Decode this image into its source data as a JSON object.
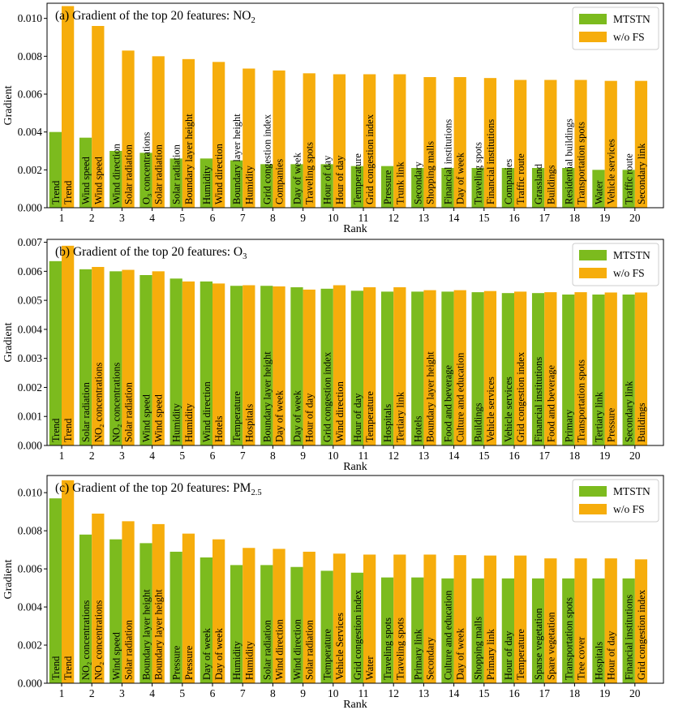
{
  "colors": {
    "mtstn": "#7cbb1e",
    "wofs": "#f6ad0c",
    "frame": "#000000",
    "background": "#ffffff"
  },
  "legend_labels": {
    "mtstn": "MTSTN",
    "wofs": "w/o FS"
  },
  "chart_data": [
    {
      "type": "bar",
      "title": "(a) Gradient of the top 20 features: NO₂",
      "title_main": "(a) Gradient of the top 20 features: NO",
      "title_sub": "2",
      "xlabel": "Rank",
      "ylabel": "Gradient",
      "legend_position": "top-right",
      "ylim": [
        0,
        0.0108
      ],
      "yticks": [
        0.0,
        0.002,
        0.004,
        0.006,
        0.008,
        0.01
      ],
      "ytick_labels": [
        "0.000",
        "0.002",
        "0.004",
        "0.006",
        "0.008",
        "0.010"
      ],
      "categories": [
        "1",
        "2",
        "3",
        "4",
        "5",
        "6",
        "7",
        "8",
        "9",
        "10",
        "11",
        "12",
        "13",
        "14",
        "15",
        "16",
        "17",
        "18",
        "19",
        "20"
      ],
      "series": [
        {
          "name": "MTSTN",
          "values": [
            0.004,
            0.0037,
            0.003,
            0.0029,
            0.0026,
            0.0026,
            0.0025,
            0.0023,
            0.0023,
            0.0023,
            0.0022,
            0.0022,
            0.0021,
            0.0021,
            0.0021,
            0.0021,
            0.0021,
            0.0021,
            0.002,
            0.002
          ],
          "feature_labels": [
            "Trend",
            "Wind speed",
            "Wind direction",
            "O₃ concentrations",
            "Solar radiation",
            "Humidity",
            "Boundary layer height",
            "Grid congestion index",
            "Day of week",
            "Hour of day",
            "Temperature",
            "Pressure",
            "Secondary",
            "Financial institutions",
            "Traveling spots",
            "Companies",
            "Grassland",
            "Residential buildings",
            "Water",
            "Traffic route"
          ]
        },
        {
          "name": "w/o FS",
          "values": [
            0.01065,
            0.0096,
            0.0083,
            0.008,
            0.00785,
            0.0077,
            0.00735,
            0.00725,
            0.0071,
            0.00705,
            0.00705,
            0.00705,
            0.0069,
            0.0069,
            0.00685,
            0.00675,
            0.00675,
            0.00675,
            0.0067,
            0.0067
          ],
          "feature_labels": [
            "Trend",
            "Wind speed",
            "Solar radiation",
            "Solar radiation",
            "Boundary layer height",
            "Wind direction",
            "Humidity",
            "Companies",
            "Traveling spots",
            "Hour of day",
            "Grid congestion index",
            "Trunk link",
            "Shopping malls",
            "Day of week",
            "Financial institutions",
            "Traffic route",
            "Buildings",
            "Transportation spots",
            "Vehicle services",
            "Secondary link"
          ]
        }
      ]
    },
    {
      "type": "bar",
      "title": "(b) Gradient of the top 20 features: O₃",
      "title_main": "(b) Gradient of the top 20 features: O",
      "title_sub": "3",
      "xlabel": "Rank",
      "ylabel": "Gradient",
      "legend_position": "top-right",
      "ylim": [
        0,
        0.0071
      ],
      "yticks": [
        0.0,
        0.001,
        0.002,
        0.003,
        0.004,
        0.005,
        0.006,
        0.007
      ],
      "ytick_labels": [
        "0.000",
        "0.001",
        "0.002",
        "0.003",
        "0.004",
        "0.005",
        "0.006",
        "0.007"
      ],
      "categories": [
        "1",
        "2",
        "3",
        "4",
        "5",
        "6",
        "7",
        "8",
        "9",
        "10",
        "11",
        "12",
        "13",
        "14",
        "15",
        "16",
        "17",
        "18",
        "19",
        "20"
      ],
      "series": [
        {
          "name": "MTSTN",
          "values": [
            0.00635,
            0.00607,
            0.006,
            0.00587,
            0.00575,
            0.00565,
            0.0055,
            0.0055,
            0.00545,
            0.0054,
            0.00533,
            0.0053,
            0.0053,
            0.0053,
            0.00528,
            0.00525,
            0.00525,
            0.0052,
            0.0052,
            0.0052
          ],
          "feature_labels": [
            "Trend",
            "Solar radiation",
            "NO₂ concentrations",
            "Wind speed",
            "Humidity",
            "Wind direction",
            "Temperature",
            "Boundary layer height",
            "Day of week",
            "Grid congestion index",
            "Hour of day",
            "Hospitals",
            "Hotels",
            "Food and beverage",
            "Buildings",
            "Vehicle services",
            "Financial institutions",
            "Primary",
            "Tertiary link",
            "Secondary link"
          ]
        },
        {
          "name": "w/o FS",
          "values": [
            0.00688,
            0.00615,
            0.00605,
            0.006,
            0.00565,
            0.00558,
            0.00552,
            0.00548,
            0.00537,
            0.00552,
            0.00545,
            0.00545,
            0.00535,
            0.00535,
            0.00532,
            0.0053,
            0.00528,
            0.00528,
            0.00527,
            0.00527
          ],
          "feature_labels": [
            "Trend",
            "NO₂ concentrations",
            "Solar radiation",
            "Wind speed",
            "Humidity",
            "Hotels",
            "Hospitals",
            "Day of week",
            "Hour of day",
            "Wind direction",
            "Temperature",
            "Tertiary link",
            "Boundary layer height",
            "Culture and education",
            "Vehicle services",
            "Grid congestion index",
            "Food and beverage",
            "Transportation spots",
            "Pressure",
            "Buildings"
          ]
        }
      ]
    },
    {
      "type": "bar",
      "title": "(c) Gradient of the top 20 features: PM₂.₅",
      "title_main": "(c) Gradient of the top 20 features: PM",
      "title_sub": "2.5",
      "xlabel": "Rank",
      "ylabel": "Gradient",
      "legend_position": "top-right",
      "ylim": [
        0,
        0.0109
      ],
      "yticks": [
        0.0,
        0.002,
        0.004,
        0.006,
        0.008,
        0.01
      ],
      "ytick_labels": [
        "0.000",
        "0.002",
        "0.004",
        "0.006",
        "0.008",
        "0.010"
      ],
      "categories": [
        "1",
        "2",
        "3",
        "4",
        "5",
        "6",
        "7",
        "8",
        "9",
        "10",
        "11",
        "12",
        "13",
        "14",
        "15",
        "16",
        "17",
        "18",
        "19",
        "20"
      ],
      "series": [
        {
          "name": "MTSTN",
          "values": [
            0.0097,
            0.0078,
            0.00755,
            0.00735,
            0.0069,
            0.0066,
            0.0062,
            0.0062,
            0.0061,
            0.0059,
            0.0058,
            0.00555,
            0.00555,
            0.0055,
            0.0055,
            0.0055,
            0.0055,
            0.0055,
            0.0055,
            0.0055
          ],
          "feature_labels": [
            "Trend",
            "NO₂ concentrations",
            "Wind speed",
            "Boundary layer height",
            "Pressure",
            "Day of week",
            "Humidity",
            "Solar radiation",
            "Wind direction",
            "Temperature",
            "Grid congestion index",
            "Traveling spots",
            "Primary link",
            "Culture and education",
            "Shopping malls",
            "Hour of day",
            "Sparse vegetation",
            "Transportation spots",
            "Hospitals",
            "Financial institutions"
          ]
        },
        {
          "name": "w/o FS",
          "values": [
            0.01065,
            0.0089,
            0.0085,
            0.00835,
            0.00785,
            0.00755,
            0.0071,
            0.00705,
            0.0069,
            0.0068,
            0.00675,
            0.00675,
            0.00675,
            0.00672,
            0.0067,
            0.0067,
            0.00655,
            0.00655,
            0.00655,
            0.0065
          ],
          "feature_labels": [
            "Trend",
            "NO₂ concentrations",
            "Solar radiation",
            "Boundary layer height",
            "Pressure",
            "Day of week",
            "Humidity",
            "Wind direction",
            "Solar radiation",
            "Vehicle Services",
            "Water",
            "Traveling spots",
            "Secondary",
            "Day of week",
            "Primary link",
            "Temperature",
            "Spare vegetation",
            "Tree cover",
            "Hour of day",
            "Grid congestion index"
          ]
        }
      ]
    }
  ]
}
